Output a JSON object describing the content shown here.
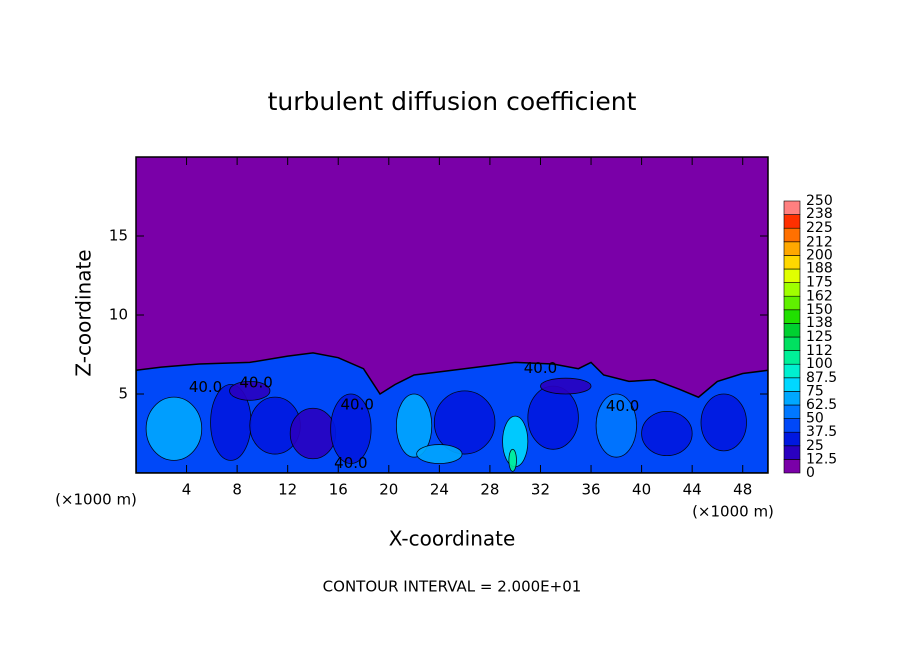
{
  "chart_data": {
    "type": "contour",
    "title": "turbulent diffusion coefficient",
    "x_label": "X-coordinate",
    "y_label": "Z-coordinate",
    "x_unit": "(×1000 m)",
    "y_unit": "(×1000 m)",
    "xlim": [
      0,
      50
    ],
    "xticks": [
      4,
      8,
      12,
      16,
      20,
      24,
      28,
      32,
      36,
      40,
      44,
      48
    ],
    "ylim": [
      0,
      20
    ],
    "yticks": [
      5,
      10,
      15
    ],
    "colorbar_ticks": [
      0,
      12.5,
      25,
      37.5,
      50,
      62.5,
      75,
      87.5,
      100,
      112,
      125,
      138,
      150,
      162,
      175,
      188,
      200,
      212,
      225,
      238,
      250
    ],
    "colors": [
      "#7a00a8",
      "#2a00c0",
      "#0018e0",
      "#0048f8",
      "#0078ff",
      "#00a8ff",
      "#00d8ff",
      "#00f0d0",
      "#00f098",
      "#00e060",
      "#00d030",
      "#20e000",
      "#60f000",
      "#a0ff00",
      "#e0ff00",
      "#ffd800",
      "#ffa800",
      "#ff7000",
      "#ff3000",
      "#ff8080"
    ],
    "contour_labels": [
      {
        "value": 40,
        "label": "40.0"
      },
      {
        "value": 40,
        "label": "40.0"
      },
      {
        "value": 40,
        "label": "40.0"
      },
      {
        "value": 40,
        "label": "40.0"
      },
      {
        "value": 40,
        "label": "40.0"
      },
      {
        "value": 40,
        "label": "40.0"
      }
    ],
    "annotation": "CONTOUR INTERVAL = 2.000E+01"
  }
}
